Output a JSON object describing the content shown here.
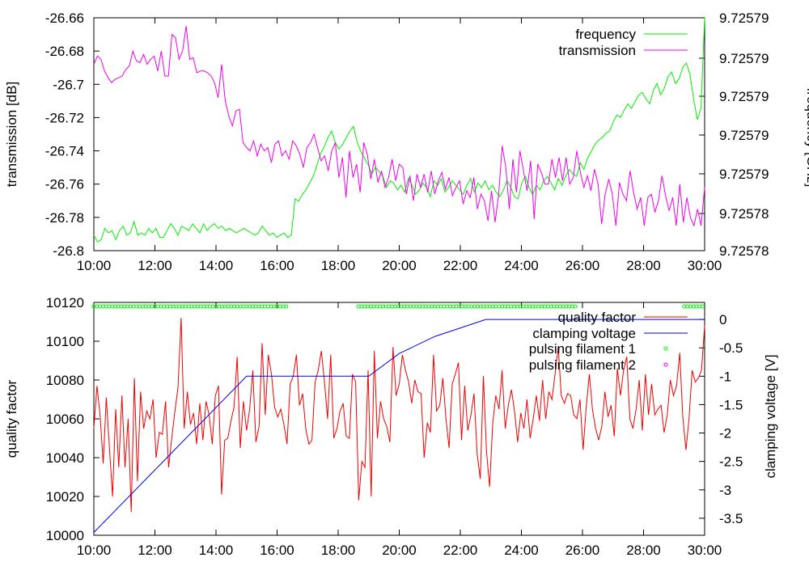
{
  "chart_data": [
    {
      "type": "line",
      "xlabel": "",
      "ylabel": "transmission [dB]",
      "y2label": "frequency [GHz]",
      "x_ticks": [
        "10:00",
        "12:00",
        "14:00",
        "16:00",
        "18:00",
        "20:00",
        "22:00",
        "24:00",
        "26:00",
        "28:00",
        "30:00"
      ],
      "xlim_minutes": [
        0,
        1200
      ],
      "ylim": [
        -26.8,
        -26.66
      ],
      "y_ticks": [
        "-26.66",
        "-26.68",
        "-26.7",
        "-26.72",
        "-26.74",
        "-26.76",
        "-26.78",
        "-26.8"
      ],
      "y2_ticks": [
        "9.72579",
        "9.72579",
        "9.72579",
        "9.72579",
        "9.72579",
        "9.72578",
        "9.72578"
      ],
      "legend_position": "top-right",
      "grid": false,
      "series": [
        {
          "name": "frequency",
          "color": "#00ee00",
          "axis": "right",
          "values_axis_fraction": [
            0.04,
            0.01,
            0.02,
            0.07,
            0.05,
            0.06,
            0.02,
            0.06,
            0.08,
            0.04,
            0.05,
            0.1,
            0.04,
            0.05,
            0.04,
            0.07,
            0.05,
            0.07,
            0.03,
            0.03,
            0.06,
            0.09,
            0.07,
            0.04,
            0.08,
            0.07,
            0.06,
            0.09,
            0.07,
            0.05,
            0.09,
            0.06,
            0.08,
            0.09,
            0.07,
            0.08,
            0.06,
            0.07,
            0.06,
            0.05,
            0.06,
            0.07,
            0.06,
            0.05,
            0.04,
            0.05,
            0.08,
            0.06,
            0.04,
            0.05,
            0.03,
            0.04,
            0.05,
            0.03,
            0.04,
            0.2,
            0.19,
            0.22,
            0.24,
            0.27,
            0.3,
            0.35,
            0.4,
            0.43,
            0.47,
            0.5,
            0.45,
            0.42,
            0.44,
            0.47,
            0.5,
            0.52,
            0.45,
            0.41,
            0.38,
            0.35,
            0.31,
            0.34,
            0.32,
            0.3,
            0.25,
            0.28,
            0.27,
            0.24,
            0.26,
            0.23,
            0.29,
            0.26,
            0.22,
            0.24,
            0.27,
            0.25,
            0.21,
            0.28,
            0.26,
            0.29,
            0.23,
            0.25,
            0.28,
            0.26,
            0.24,
            0.22,
            0.26,
            0.29,
            0.23,
            0.27,
            0.25,
            0.28,
            0.24,
            0.26,
            0.23,
            0.21,
            0.24,
            0.28,
            0.25,
            0.21,
            0.2,
            0.27,
            0.3,
            0.25,
            0.22,
            0.26,
            0.24,
            0.28,
            0.3,
            0.27,
            0.24,
            0.29,
            0.26,
            0.3,
            0.33,
            0.31,
            0.3,
            0.36,
            0.33,
            0.38,
            0.41,
            0.44,
            0.46,
            0.47,
            0.49,
            0.5,
            0.54,
            0.57,
            0.56,
            0.59,
            0.62,
            0.6,
            0.63,
            0.66,
            0.67,
            0.64,
            0.62,
            0.68,
            0.71,
            0.66,
            0.69,
            0.74,
            0.76,
            0.71,
            0.73,
            0.78,
            0.8,
            0.75,
            0.64,
            0.55,
            0.6,
            1.0
          ]
        },
        {
          "name": "transmission",
          "color": "#ee00ee",
          "axis": "left",
          "values": [
            -26.688,
            -26.683,
            -26.685,
            -26.692,
            -26.696,
            -26.699,
            -26.697,
            -26.696,
            -26.695,
            -26.691,
            -26.689,
            -26.68,
            -26.686,
            -26.687,
            -26.682,
            -26.688,
            -26.685,
            -26.683,
            -26.692,
            -26.68,
            -26.695,
            -26.695,
            -26.67,
            -26.672,
            -26.685,
            -26.68,
            -26.665,
            -26.685,
            -26.684,
            -26.693,
            -26.692,
            -26.692,
            -26.693,
            -26.695,
            -26.699,
            -26.708,
            -26.688,
            -26.71,
            -26.719,
            -26.725,
            -26.716,
            -26.715,
            -26.735,
            -26.738,
            -26.74,
            -26.734,
            -26.743,
            -26.736,
            -26.74,
            -26.738,
            -26.747,
            -26.736,
            -26.734,
            -26.743,
            -26.74,
            -26.745,
            -26.734,
            -26.737,
            -26.742,
            -26.75,
            -26.738,
            -26.735,
            -26.73,
            -26.738,
            -26.746,
            -26.743,
            -26.752,
            -26.74,
            -26.735,
            -26.756,
            -26.744,
            -26.768,
            -26.74,
            -26.756,
            -26.748,
            -26.765,
            -26.735,
            -26.742,
            -26.757,
            -26.745,
            -26.759,
            -26.752,
            -26.762,
            -26.756,
            -26.745,
            -26.758,
            -26.748,
            -26.75,
            -26.766,
            -26.755,
            -26.77,
            -26.754,
            -26.762,
            -26.754,
            -26.765,
            -26.752,
            -26.766,
            -26.758,
            -26.753,
            -26.763,
            -26.756,
            -26.767,
            -26.762,
            -26.758,
            -26.772,
            -26.764,
            -26.768,
            -26.756,
            -26.775,
            -26.766,
            -26.77,
            -26.782,
            -26.764,
            -26.783,
            -26.766,
            -26.737,
            -26.75,
            -26.775,
            -26.745,
            -26.765,
            -26.74,
            -26.752,
            -26.764,
            -26.746,
            -26.781,
            -26.748,
            -26.753,
            -26.76,
            -26.76,
            -26.745,
            -26.756,
            -26.744,
            -26.758,
            -26.744,
            -26.76,
            -26.756,
            -26.74,
            -26.753,
            -26.762,
            -26.755,
            -26.764,
            -26.751,
            -26.76,
            -26.784,
            -26.766,
            -26.757,
            -26.766,
            -26.785,
            -26.759,
            -26.766,
            -26.77,
            -26.752,
            -26.765,
            -26.775,
            -26.768,
            -26.785,
            -26.768,
            -26.766,
            -26.777,
            -26.77,
            -26.755,
            -26.767,
            -26.776,
            -26.768,
            -26.785,
            -26.76,
            -26.783,
            -26.768,
            -26.78,
            -26.785,
            -26.775,
            -26.785,
            -26.762
          ]
        }
      ]
    },
    {
      "type": "line",
      "xlabel": "",
      "ylabel": "quality factor",
      "y2label": "clamping voltage [V]",
      "x_ticks": [
        "10:00",
        "12:00",
        "14:00",
        "16:00",
        "18:00",
        "20:00",
        "22:00",
        "24:00",
        "26:00",
        "28:00",
        "30:00"
      ],
      "xlim_minutes": [
        0,
        1200
      ],
      "ylim": [
        10000,
        10120
      ],
      "y2lim": [
        -3.8,
        0.3
      ],
      "y_ticks": [
        "10120",
        "10100",
        "10080",
        "10060",
        "10040",
        "10020",
        "10000"
      ],
      "y2_ticks": [
        "0",
        "-0.5",
        "-1",
        "-1.5",
        "-2",
        "-2.5",
        "-3",
        "-3.5"
      ],
      "legend_position": "top-right",
      "grid": false,
      "series": [
        {
          "name": "quality factor",
          "color": "#ee0000",
          "axis": "left",
          "values": [
            10055,
            10077,
            10062,
            10037,
            10071,
            10045,
            10020,
            10065,
            10035,
            10072,
            10035,
            10060,
            10012,
            10081,
            10028,
            10074,
            10055,
            10064,
            10060,
            10070,
            10040,
            10053,
            10052,
            10069,
            10035,
            10050,
            10064,
            10076,
            10112,
            10055,
            10074,
            10057,
            10063,
            10047,
            10068,
            10049,
            10069,
            10062,
            10047,
            10072,
            10077,
            10021,
            10049,
            10050,
            10059,
            10066,
            10092,
            10045,
            10069,
            10054,
            10065,
            10085,
            10048,
            10056,
            10099,
            10062,
            10093,
            10083,
            10066,
            10061,
            10065,
            10057,
            10047,
            10078,
            10082,
            10093,
            10067,
            10073,
            10055,
            10047,
            10049,
            10079,
            10085,
            10095,
            10079,
            10060,
            10093,
            10050,
            10055,
            10064,
            10068,
            10051,
            10050,
            10083,
            10079,
            10018,
            10038,
            10035,
            10085,
            10020,
            10095,
            10050,
            10069,
            10060,
            10056,
            10048,
            10097,
            10072,
            10078,
            10093,
            10085,
            10079,
            10068,
            10080,
            10074,
            10073,
            10040,
            10058,
            10053,
            10093,
            10064,
            10067,
            10081,
            10060,
            10045,
            10078,
            10083,
            10089,
            10049,
            10077,
            10054,
            10062,
            10073,
            10042,
            10029,
            10082,
            10043,
            10025,
            10058,
            10072,
            10065,
            10085,
            10055,
            10067,
            10075,
            10064,
            10048,
            10063,
            10055,
            10070,
            10050,
            10060,
            10072,
            10059,
            10080,
            10060,
            10074,
            10070,
            10083,
            10097,
            10072,
            10068,
            10073,
            10072,
            10062,
            10060,
            10070,
            10044,
            10066,
            10083,
            10065,
            10055,
            10049,
            10056,
            10074,
            10061,
            10067,
            10051,
            10086,
            10072,
            10085,
            10092,
            10060,
            10055,
            10065,
            10080,
            10054,
            10083,
            10062,
            10078,
            10062,
            10065,
            10067,
            10053,
            10062,
            10080,
            10072,
            10077,
            10094,
            10061,
            10044,
            10060,
            10085,
            10079,
            10081,
            10085,
            10108
          ]
        },
        {
          "name": "clamping voltage",
          "color": "#0000ee",
          "axis": "right",
          "x_minutes": [
            0,
            300,
            360,
            400,
            420,
            540,
            600,
            670,
            770,
            1200
          ],
          "values": [
            -3.75,
            -1.0,
            -1.0,
            -1.0,
            -1.0,
            -1.0,
            -0.6,
            -0.3,
            0.0,
            0.0
          ]
        },
        {
          "name": "pulsing filament 1",
          "color": "#00ee00",
          "axis": "top-row",
          "x_ranges_minutes": [
            [
              0,
              380
            ],
            [
              520,
              950
            ],
            [
              1160,
              1200
            ]
          ]
        },
        {
          "name": "pulsing filament 2",
          "color": "#ee00ee",
          "axis": "top-row",
          "x_ranges_minutes": []
        }
      ]
    }
  ]
}
